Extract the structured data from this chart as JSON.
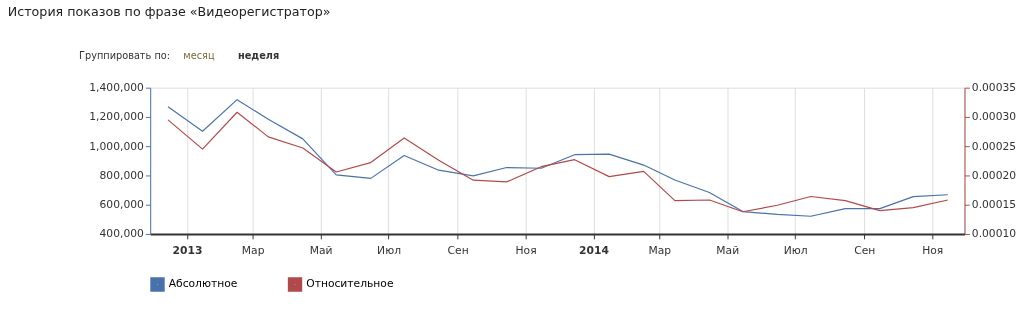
{
  "chart_data": {
    "type": "line",
    "title": "История показов по фразе «Видеорегистратор»",
    "annotations": [
      "Группировать по:",
      "месяц",
      "неделя"
    ],
    "x": [
      "2012-12-15",
      "2013-01-15",
      "2013-02-15",
      "2013-03-15",
      "2013-04-15",
      "2013-05-15",
      "2013-06-15",
      "2013-07-15",
      "2013-08-15",
      "2013-09-15",
      "2013-10-15",
      "2013-11-15",
      "2013-12-15",
      "2014-01-15",
      "2014-02-15",
      "2014-03-15",
      "2014-04-15",
      "2014-05-15",
      "2014-06-15",
      "2014-07-15",
      "2014-08-15",
      "2014-09-15",
      "2014-10-15",
      "2014-11-15"
    ],
    "series": [
      {
        "name": "Абсолютное",
        "color": "#4a72aa",
        "values": [
          1270000,
          1102000,
          1318000,
          1184000,
          1050000,
          804000,
          780000,
          936000,
          836000,
          797000,
          854000,
          849000,
          942000,
          946000,
          871000,
          769000,
          683000,
          553000,
          534000,
          521000,
          573000,
          573000,
          655000,
          668000
        ]
      },
      {
        "name": "Относительное",
        "color": "#b04a4a",
        "axis": "y2",
        "values": [
          0.000295,
          0.000245,
          0.000308,
          0.000266,
          0.000247,
          0.000206,
          0.000222,
          0.000264,
          0.000226,
          0.000192,
          0.000189,
          0.000215,
          0.000227,
          0.000198,
          0.000207,
          0.000157,
          0.000158,
          0.000138,
          0.000149,
          0.000164,
          0.000157,
          0.00014,
          0.000145,
          0.000158
        ]
      }
    ],
    "xlim": [
      "2012-11-29",
      "2014-11-30"
    ],
    "xticks": [
      {
        "value": "2013-01-01",
        "label": "2013"
      },
      {
        "value": "2013-03-01",
        "label": "Мар"
      },
      {
        "value": "2013-05-01",
        "label": "Май"
      },
      {
        "value": "2013-07-01",
        "label": "Июл"
      },
      {
        "value": "2013-09-01",
        "label": "Сен"
      },
      {
        "value": "2013-11-01",
        "label": "Ноя"
      },
      {
        "value": "2014-01-01",
        "label": "2014"
      },
      {
        "value": "2014-03-01",
        "label": "Мар"
      },
      {
        "value": "2014-05-01",
        "label": "Май"
      },
      {
        "value": "2014-07-01",
        "label": "Июл"
      },
      {
        "value": "2014-09-01",
        "label": "Сен"
      },
      {
        "value": "2014-11-01",
        "label": "Ноя"
      }
    ],
    "ylim": [
      400000,
      1400000
    ],
    "yticks": [
      {
        "value": 400000,
        "label": "400,000"
      },
      {
        "value": 600000,
        "label": "600,000"
      },
      {
        "value": 800000,
        "label": "800,000"
      },
      {
        "value": 1000000,
        "label": "1,000,000"
      },
      {
        "value": 1200000,
        "label": "1,200,000"
      },
      {
        "value": 1400000,
        "label": "1,400,000"
      }
    ],
    "y2lim": [
      0.0001,
      0.00035
    ],
    "y2ticks": [
      {
        "value": 0.0001,
        "label": "0.00010"
      },
      {
        "value": 0.00015,
        "label": "0.00015"
      },
      {
        "value": 0.0002,
        "label": "0.00020"
      },
      {
        "value": 0.00025,
        "label": "0.00025"
      },
      {
        "value": 0.0003,
        "label": "0.00030"
      },
      {
        "value": 0.00035,
        "label": "0.00035"
      }
    ],
    "grid": "x",
    "legend": "bottom left",
    "marker": "none",
    "line_style": "solid"
  }
}
